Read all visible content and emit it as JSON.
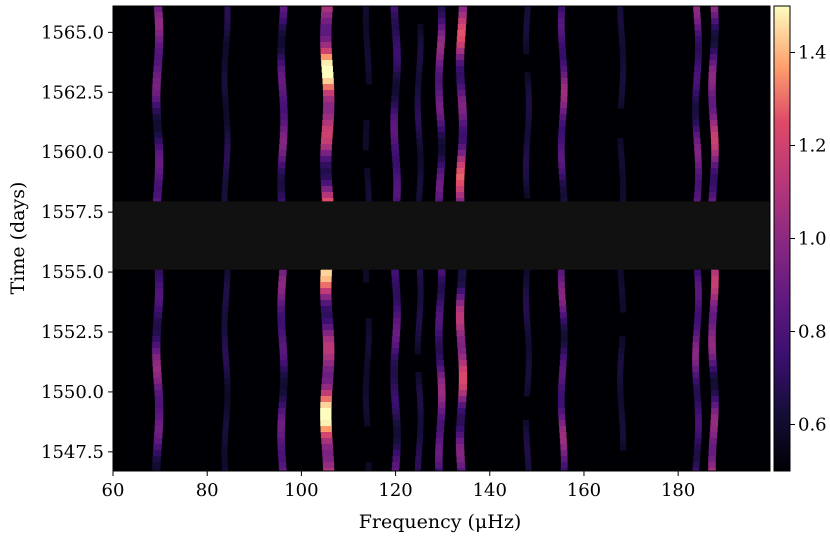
{
  "chart_data": {
    "type": "heatmap",
    "title": "",
    "xlabel": "Frequency (μHz)",
    "ylabel": "Time (days)",
    "xlim": [
      60,
      199.5
    ],
    "ylim": [
      1546.7,
      1566.1
    ],
    "x_ticks": [
      60,
      80,
      100,
      120,
      140,
      160,
      180
    ],
    "x_tick_labels": [
      "60",
      "80",
      "100",
      "120",
      "140",
      "160",
      "180"
    ],
    "y_ticks": [
      1547.5,
      1550.0,
      1552.5,
      1555.0,
      1557.5,
      1560.0,
      1562.5,
      1565.0
    ],
    "y_tick_labels": [
      "1547.5",
      "1550.0",
      "1552.5",
      "1555.0",
      "1557.5",
      "1560.0",
      "1562.5",
      "1565.0"
    ],
    "colormap": "magma",
    "colorbar": {
      "range": [
        0.5,
        1.5
      ],
      "ticks": [
        0.6,
        0.8,
        1.0,
        1.2,
        1.4
      ],
      "tick_labels": [
        "0.6",
        "0.8",
        "1.0",
        "1.2",
        "1.4"
      ]
    },
    "gap": {
      "time_start": 1555.1,
      "time_end": 1557.95,
      "color": "#111111"
    },
    "ridges": [
      {
        "freq": 69.5,
        "peak": 1.05,
        "width": 1.1
      },
      {
        "freq": 84.0,
        "peak": 0.7,
        "width": 0.8
      },
      {
        "freq": 96.0,
        "peak": 1.0,
        "width": 1.0
      },
      {
        "freq": 105.5,
        "peak": 1.55,
        "width": 1.5
      },
      {
        "freq": 114.0,
        "peak": 0.62,
        "width": 0.8
      },
      {
        "freq": 120.0,
        "peak": 0.9,
        "width": 1.0
      },
      {
        "freq": 125.0,
        "peak": 0.7,
        "width": 0.8
      },
      {
        "freq": 129.5,
        "peak": 1.05,
        "width": 1.0
      },
      {
        "freq": 134.0,
        "peak": 1.3,
        "width": 1.1
      },
      {
        "freq": 148.0,
        "peak": 0.68,
        "width": 0.8
      },
      {
        "freq": 155.5,
        "peak": 1.05,
        "width": 0.9
      },
      {
        "freq": 168.0,
        "peak": 0.65,
        "width": 0.8
      },
      {
        "freq": 184.0,
        "peak": 1.0,
        "width": 0.9
      },
      {
        "freq": 187.5,
        "peak": 1.2,
        "width": 1.0
      }
    ]
  }
}
